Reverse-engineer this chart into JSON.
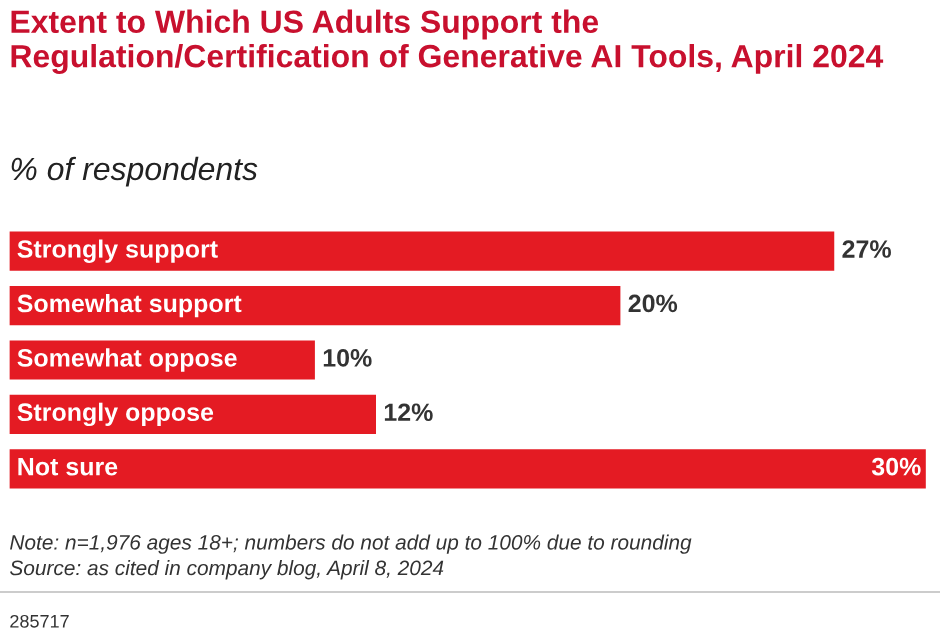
{
  "chart_data": {
    "type": "bar",
    "orientation": "horizontal",
    "title": "Extent to Which US Adults Support the Regulation/Certification of Generative AI Tools, April 2024",
    "subtitle": "% of respondents",
    "categories": [
      "Strongly support",
      "Somewhat support",
      "Somewhat oppose",
      "Strongly oppose",
      "Not sure"
    ],
    "values": [
      27,
      20,
      10,
      12,
      30
    ],
    "value_labels": [
      "27%",
      "20%",
      "10%",
      "12%",
      "30%"
    ],
    "color": "#e41b23",
    "annotations": [
      "Note: n=1,976 ages 18+; numbers do not add up to 100% due to rounding",
      "Source: as cited in company blog, April 8, 2024",
      "285717"
    ]
  }
}
